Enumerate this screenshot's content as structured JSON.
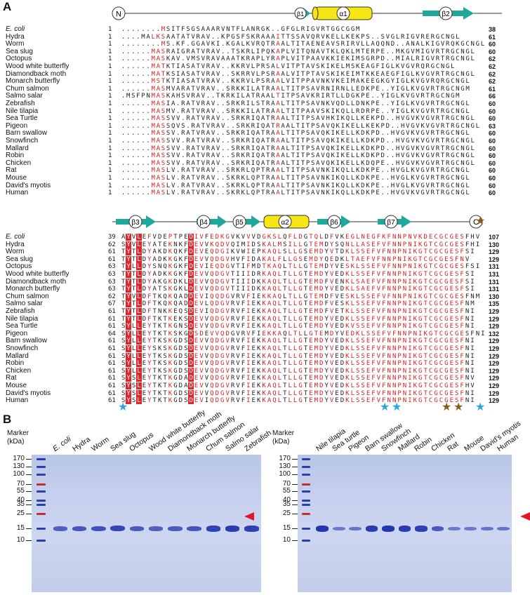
{
  "panels": {
    "a": "A",
    "b": "B"
  },
  "species": [
    "E. coli",
    "Hydra",
    "Worm",
    "Sea slug",
    "Octopus",
    "Wood white butterfly",
    "Diamondback moth",
    "Monarch butterfly",
    "Chum salmon",
    "Salmo salar",
    "Zebrafish",
    "Nile tilapia",
    "Sea Turtle",
    "Pigeon",
    "Barn swallow",
    "Snowfinch",
    "Mallard",
    "Robin",
    "Chicken",
    "Rat",
    "Mouse",
    "David's myotis",
    "Human"
  ],
  "block1": {
    "start": [
      1,
      1,
      1,
      1,
      1,
      1,
      1,
      1,
      1,
      1,
      1,
      1,
      1,
      1,
      1,
      1,
      1,
      1,
      1,
      1,
      1,
      1,
      1
    ],
    "end": [
      38,
      61,
      60,
      60,
      62,
      62,
      62,
      62,
      61,
      66,
      60,
      60,
      60,
      63,
      60,
      60,
      60,
      60,
      60,
      60,
      60,
      60,
      60
    ],
    "seqs": [
      "........MSITFSGSAAARVNTFLANRGK..GFGLRIGVRTGGCGGM",
      "....MALKSAATATVRAV..KPGSFSKRAAAITTSSAVQRVKELLKEKPS..SVGLRIGVRERGCNGL",
      "........MS.KF.GGAVKI.KGALKVRQTRAALTITAENEAVSRIRVLLAQQND..ANALKIGVRQKGCNGL",
      "......MASRAIGRATVRAV..TSKRLIPQKAPLVITQNAVTKLQKLMTERPE..MKGVMIGVRTRGCNGL",
      "......MASKAV.VMSVRAVAAATKRAPLYRAPLVITPAAVKKIEKIMSGRPD..MIALRIGVRTRGCNGL",
      "......MATKTIASATVRAV..KKRVLPRSALVITPTAVSKIKELMSKEAGFIGLKVGVRQRGCNGL",
      "......MATKSIASATVRAV..SKRRVLPSRAALVITPTAVSKIKEIMTKKEAEGFIGLKVGVRTRGCNGL",
      "......MSTKTIASATVRAV..KKRVLPSRAALVITPPAVNKVKEIMAKEEGKGYIGLKVGVRQRGCNGL",
      "......MASMVARATVRAV..SRKKILATRAALTITPSAVRNIRNLLEDKPE..YIGLKVGVRTRGCNGM",
      ".MSFPNMASKAHSVRAV..TKRKILATRAALTITPSAVKRIRTLLDGKPE..YIGLKVGVRTRGCNGM",
      "......MASIA.RATVRAV..SRKRILSTRAALTITPSAVNKVQDLLDNKPE..YIGLKVGVRTRGCNGL",
      "......MASMV.RATVRAV..SRKKILATRAALTITPAAVSKIKQLLRDRPE..YIGLKVGVRTRGCNGL",
      "......MASSVV.RATVRAV..SRKRIQATRAALTITPSAVHKIKQLLKEKPD..HVGVKVGVRTRGCNGL",
      "......MASSQVS.RATVRAV..SRKRIQATRAALTITPSAVQKIKELLKEKPD..HVGVKVGVRTRGCNGL",
      "......MASSV.RATVRAV..SRKRIQATRAALTITPSAVQKIKELLKDKPD..HVGVKVGVRTRGCNGL",
      "......MASSVV.RATVRAV..SRKRIQATRAALTITPSAVQKIKELLKDKPD..HVGVKVGVRTRGCNGL",
      "......MASSVV.RATVRAV..SRKRIQATRAALTITPSAVQKIKELLKDKPD..HVGVKVGVRTRGCNGL",
      "......MASSVV.RATVRAV..SRKRIQATRAALTITPSAVQKIKELLKDKPD..HVGVKVGVRTRGCNGL",
      "......MASSVV.RATVRAV..SRKRIQATRAALTITPSAVQKIKELLKDQPE..HVGVKVGVRTRGCNGL",
      "......MASLV.RATVRAV..SRKRLQPTRAALTITPSAVNKIKQLLKDKPE..HVGLKVGVRTRGCNGL",
      "......MASLV.RATVRAV..SKRKLQPTRAALTITPSAVNKIKQLLKDKPE..HVGLKVGVRTRGCNGL",
      "......MASLV.RATVRAV..SKRKLQPTRAALTITPSAVNKIKQLLKDKPE..HVGLKVGVRTRGCNGL",
      "......MASLV.RATVRAV..SKRKLQPTRAALTITPSAVNKIKQLLKDKPE..HVGVKVGVRTRGCNGL"
    ]
  },
  "block2": {
    "start": [
      39,
      62,
      61,
      61,
      63,
      63,
      63,
      63,
      62,
      67,
      61,
      61,
      61,
      64,
      61,
      61,
      61,
      61,
      61,
      61,
      61,
      61,
      61
    ],
    "end": [
      107,
      130,
      129,
      129,
      131,
      131,
      131,
      131,
      130,
      135,
      129,
      129,
      129,
      132,
      129,
      129,
      129,
      129,
      129,
      129,
      129,
      129,
      129
    ],
    "seqs": [
      "AYVLEFVDEPTPEDIVFEDKGVKVVVDGKSLQFLDGTQLDFVKEGLNEGFKFNNPNVKDECGCGESFHV",
      "SYVLEYATEKNKFDEVVKQDVQIMIDSKALMSILLGTEMDYSQNLLASEFVFNNPNIKGTCGCGESFHI",
      "TYTLDYAKDKQKFDEVEQDGIKVWIEPKAQLSLLGSEMDYVTDKLSSEFVFNNPNIKGTCGCGESFSI",
      "TYTLDYADKKGKFDEVVQDGVHVFIDAKALFLLGSEMDYQEDKLTAEFVFNNPNIKGTCGCGESFNV",
      "TYLLDYSNQKGKFDEVIEQDGVTIFMDTKAQLTLLGTEMDYVESKLSSEFVFNNPNIKGTCGCGESFSI",
      "TYTLDYADKKGKFDEVVQDGVTIIIDRKAQLTLLGTEMDYVEDKLSSEFVFNNPNIKGTCGCGESFSI",
      "TYTLDYAKGKDKLDEVVQDGVTIIIDKKAQLTLLGTEMDFVENKLSAEFVFNNPNIKGTCGCGESFSI",
      "TYTLDYATSKGKLDEVVQDGVTIIIDKKAQLTLLGTEMDYVEDKLSAEFVFNNPNIKGTCGCGESFSI",
      "TYVLDFTKQKQADDEVIQQDGVRVFIEKKAQLTLLGTEMDFVESKLSSEFVFNNPNIKGTCGCGESFNM",
      "TYTLDFTKQKQADDEVLQDGVRVFIEKKAQLTLLGTEMDFVESKLSSEFVFNNPNIKGTCGCGESFNM",
      "TYTLDFTNKKEQSDEVIQDGVRVFIEKKAQLTLLGTEMDFVETKLSSEFVFNNPNIKGTCGCGESFNI",
      "TYTLDFTKTKEKSDEVVQDGVRVFIEKKAQLTLLGTEMDYVEDKLSSEFVFNNPNIKGTCGCGESFNI",
      "SYLLEYTKTKGNSDEVVQDGVRVFIEKKAQLTLLGTEMDYVEDKVSSEFVFNNPNIKGTCGCGESFNI",
      "SYLLEYTKTKSKGDSDEVVQDGVRVFIEKKAQLTLLGTEMDYVEDKLSSEFVFNNPNIKGTCGCGESFNI",
      "SYLLEYTKSKGDSDEVVQDGVRVFIEKKAQLTLLGTEMDYVEDKLSSEFVFNNPNIKGTCGCGESFNI",
      "SYLLEYSKSKGDSDEVVQDGVRVFIEKKAQLTLLGTEMDYVEDKLSSEFVFNNPNIKGTCGCGESFNI",
      "SYLLEYTKSKGDSDEVVQDGVRVFIEKKAQLTLLGTEMDYVEDKLSSEFVFNNPNIKGTCGCGESFNI",
      "SYLLEYTKSKGDSDEVVQDGVRVFIEKKAQLTLLGTEMDYVEDKLSSEFVFNNPNIKGTCGCGESFNI",
      "SYLLEYTKSKGDSDEVVQDGVRVFIEKKAQLTLLGTEMDYVEDKLSSEFVFNNPNIKGTCGCGESFNI",
      "SYSLEYTKTKGDADEVVQDGVRVFIEKKAQLTLLGTEMDYVEDKLSSEFVFNNPNIKGTCGCGESFNV",
      "SYSLEYTKTKGDADEVVQDGVRVFIEKKAQLTLLGTEMDYVEDKLSSEFVFNNPNIKGTCGCGESFHV",
      "SYSLEYTKTKGDSDEVVQDGVRVFIEKKAQLTLLGTEMDYVEDKLSSEFVFNNPNIKGTCGCGESFNI",
      "SYSLEYTKTKGDSDEVIQDGVRVFIEKKAQLTLLGTEMDYVEDKLSSEFVFNNPNIKGTCGCGESFNI"
    ]
  },
  "ss1": {
    "n": "N",
    "b1": "β1",
    "a1": "α1",
    "b2": "β2"
  },
  "ss2": {
    "b3": "β3",
    "b4": "β4",
    "b5": "β5",
    "a2": "α2",
    "b6": "β6",
    "b7": "β7",
    "c": "C"
  },
  "colors": {
    "red": "#e0242a",
    "helix": "#f5e614",
    "strand": "#1fa89b",
    "blueStar": "#2aa7e0",
    "brownStar": "#8b5a14",
    "arrow": "#e0162b"
  },
  "gel": {
    "marker_title": "Marker\n(kDa)",
    "mw_labels": [
      "170",
      "130",
      "100",
      "70",
      "55",
      "40",
      "35",
      "25",
      "15",
      "10"
    ],
    "mw_values": [
      170,
      130,
      100,
      70,
      55,
      40,
      35,
      25,
      15,
      10
    ],
    "left_lanes": [
      "E. coli",
      "Hydra",
      "Worm",
      "Sea slug",
      "Octopus",
      "Wood white butterfly",
      "Diamondback moth",
      "Monarch butterfly",
      "Chum salmon",
      "Salmo salar",
      "Zebrafish"
    ],
    "left_intensity": [
      0.55,
      0.65,
      0.7,
      0.8,
      0.6,
      0.55,
      0.6,
      0.65,
      0.85,
      0.9,
      0.85
    ],
    "right_lanes": [
      "Nile tilapia",
      "Sea turtle",
      "Pigeon",
      "Barn swallow",
      "Snowfinch",
      "Mallard",
      "Robin",
      "Chicken",
      "Rat",
      "Mouse",
      "David's myotis",
      "Human"
    ],
    "right_intensity": [
      0.95,
      0.3,
      0.35,
      0.9,
      0.95,
      0.9,
      0.85,
      0.6,
      0.3,
      0.3,
      0.35,
      0.35
    ]
  }
}
